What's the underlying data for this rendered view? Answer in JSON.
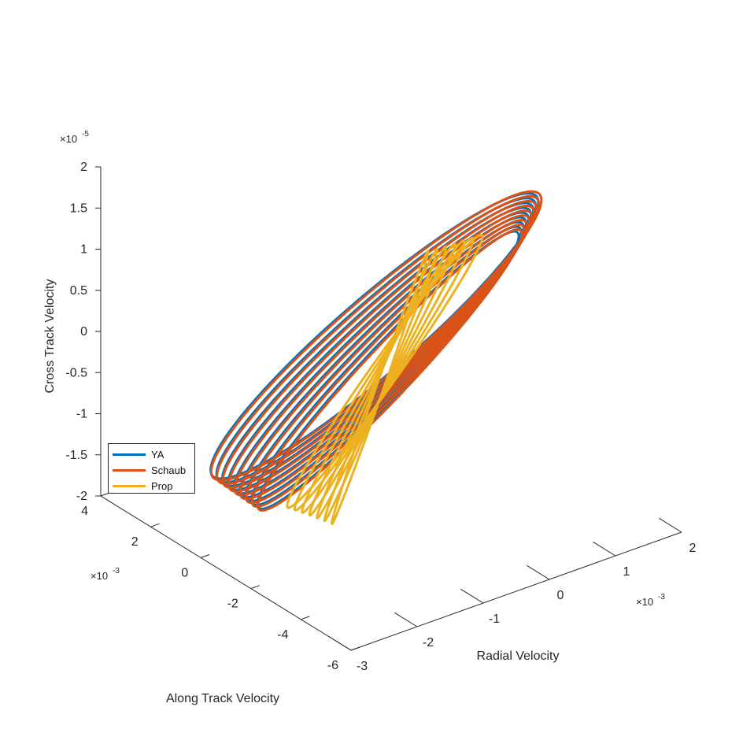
{
  "chart_data": {
    "type": "line",
    "projection": "3d",
    "title": "",
    "xlabel": "Radial Velocity",
    "ylabel": "Along Track Velocity",
    "zlabel": "Cross Track Velocity",
    "x_axis": {
      "ticks": [
        -3,
        -2,
        -1,
        0,
        1,
        2
      ],
      "tick_labels": [
        "-3",
        "-2",
        "-1",
        "0",
        "1",
        "2"
      ],
      "exponent_label": "×10",
      "exponent": "-3",
      "range": [
        -3,
        2
      ]
    },
    "y_axis": {
      "ticks": [
        -6,
        -4,
        -2,
        0,
        2,
        4
      ],
      "tick_labels": [
        "-6",
        "-4",
        "-2",
        "0",
        "2",
        "4"
      ],
      "exponent_label": "×10",
      "exponent": "-3",
      "range": [
        -6,
        4
      ]
    },
    "z_axis": {
      "ticks": [
        -2,
        -1.5,
        -1,
        -0.5,
        0,
        0.5,
        1,
        1.5,
        2
      ],
      "tick_labels": [
        "-2",
        "-1.5",
        "-1",
        "-0.5",
        "0",
        "0.5",
        "1",
        "1.5",
        "2"
      ],
      "exponent_label": "×10",
      "exponent": "-5",
      "range": [
        -2,
        2
      ]
    },
    "grid": false,
    "legend_position": "lower-left",
    "series": [
      {
        "name": "YA",
        "color": "#0072BD",
        "description_level": "nested elliptical loops, 9 orbits",
        "loops": [
          {
            "cx": -0.45,
            "cy": -0.2,
            "ax": 1.9,
            "ay": 4.2,
            "zamp": 1.75
          },
          {
            "cx": -0.5,
            "cy": -0.4,
            "ax": 1.85,
            "ay": 4.1,
            "zamp": 1.75
          },
          {
            "cx": -0.55,
            "cy": -0.6,
            "ax": 1.8,
            "ay": 4.0,
            "zamp": 1.75
          },
          {
            "cx": -0.6,
            "cy": -0.8,
            "ax": 1.75,
            "ay": 3.9,
            "zamp": 1.75
          },
          {
            "cx": -0.65,
            "cy": -1.0,
            "ax": 1.7,
            "ay": 3.8,
            "zamp": 1.75
          },
          {
            "cx": -0.7,
            "cy": -1.2,
            "ax": 1.65,
            "ay": 3.7,
            "zamp": 1.75
          },
          {
            "cx": -0.75,
            "cy": -1.4,
            "ax": 1.6,
            "ay": 3.6,
            "zamp": 1.75
          },
          {
            "cx": -0.8,
            "cy": -1.6,
            "ax": 1.55,
            "ay": 3.5,
            "zamp": 1.75
          },
          {
            "cx": -0.85,
            "cy": -1.8,
            "ax": 1.5,
            "ay": 3.4,
            "zamp": 1.75
          }
        ]
      },
      {
        "name": "Schaub",
        "color": "#D95319",
        "loops": [
          {
            "cx": -0.43,
            "cy": -0.22,
            "ax": 1.92,
            "ay": 4.22,
            "zamp": 1.77
          },
          {
            "cx": -0.48,
            "cy": -0.42,
            "ax": 1.87,
            "ay": 4.12,
            "zamp": 1.77
          },
          {
            "cx": -0.53,
            "cy": -0.62,
            "ax": 1.82,
            "ay": 4.02,
            "zamp": 1.77
          },
          {
            "cx": -0.58,
            "cy": -0.82,
            "ax": 1.77,
            "ay": 3.92,
            "zamp": 1.77
          },
          {
            "cx": -0.63,
            "cy": -1.02,
            "ax": 1.72,
            "ay": 3.82,
            "zamp": 1.77
          },
          {
            "cx": -0.68,
            "cy": -1.22,
            "ax": 1.67,
            "ay": 3.72,
            "zamp": 1.77
          },
          {
            "cx": -0.73,
            "cy": -1.42,
            "ax": 1.62,
            "ay": 3.62,
            "zamp": 1.77
          },
          {
            "cx": -0.78,
            "cy": -1.62,
            "ax": 1.57,
            "ay": 3.52,
            "zamp": 1.77
          },
          {
            "cx": -0.83,
            "cy": -1.82,
            "ax": 1.52,
            "ay": 3.42,
            "zamp": 1.77
          }
        ]
      },
      {
        "name": "Prop",
        "color": "#EDB120",
        "loops": [
          {
            "cx": -0.9,
            "cy": -1.8,
            "ax": 1.1,
            "ay": 2.6,
            "zamp": 1.75
          },
          {
            "cx": -0.95,
            "cy": -1.9,
            "ax": 1.0,
            "ay": 2.4,
            "zamp": 1.75
          },
          {
            "cx": -1.0,
            "cy": -2.0,
            "ax": 0.9,
            "ay": 2.2,
            "zamp": 1.75
          },
          {
            "cx": -1.05,
            "cy": -2.1,
            "ax": 0.8,
            "ay": 2.0,
            "zamp": 1.75
          },
          {
            "cx": -1.1,
            "cy": -2.2,
            "ax": 0.7,
            "ay": 1.8,
            "zamp": 1.75
          },
          {
            "cx": -1.15,
            "cy": -2.3,
            "ax": 0.6,
            "ay": 1.6,
            "zamp": 1.75
          },
          {
            "cx": -1.2,
            "cy": -2.4,
            "ax": 0.5,
            "ay": 1.4,
            "zamp": 1.75
          }
        ]
      }
    ]
  }
}
